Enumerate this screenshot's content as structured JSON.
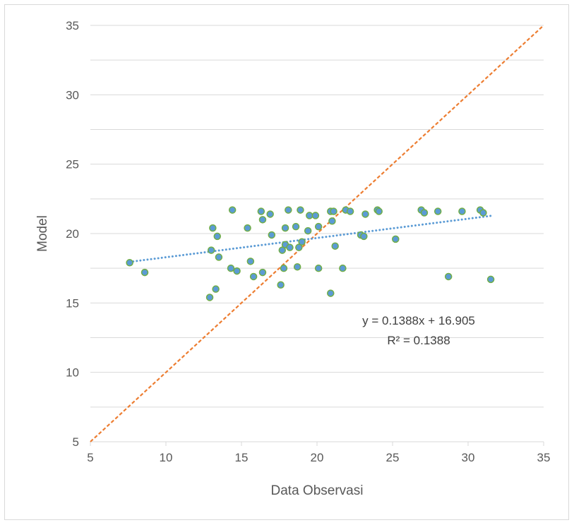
{
  "chart_data": {
    "type": "scatter",
    "title": "",
    "xlabel": "Data Observasi",
    "ylabel": "Model",
    "xlim": [
      5,
      35
    ],
    "ylim": [
      5,
      35
    ],
    "xticks": [
      "5",
      "10",
      "15",
      "20",
      "25",
      "30",
      "35"
    ],
    "yticks": [
      "5",
      "10",
      "15",
      "20",
      "25",
      "30",
      "35"
    ],
    "grid": "horizontal",
    "legend": "none",
    "colors": {
      "point_fill": "#5b9bd5",
      "point_edge": "#70ad47",
      "trendline": "#5b9bd5",
      "identity_line": "#ed7d31",
      "gridline": "#d9d9d9"
    },
    "points": [
      [
        7.6,
        17.9
      ],
      [
        8.6,
        17.2
      ],
      [
        12.9,
        15.4
      ],
      [
        13.1,
        20.4
      ],
      [
        13.0,
        18.8
      ],
      [
        13.3,
        16.0
      ],
      [
        13.4,
        19.8
      ],
      [
        13.5,
        18.3
      ],
      [
        14.4,
        21.7
      ],
      [
        14.3,
        17.5
      ],
      [
        14.7,
        17.3
      ],
      [
        15.4,
        20.4
      ],
      [
        15.6,
        18.0
      ],
      [
        15.8,
        16.9
      ],
      [
        16.3,
        21.6
      ],
      [
        16.4,
        21.0
      ],
      [
        16.4,
        17.2
      ],
      [
        16.9,
        21.4
      ],
      [
        17.0,
        19.9
      ],
      [
        17.6,
        16.3
      ],
      [
        17.7,
        18.8
      ],
      [
        17.8,
        17.5
      ],
      [
        17.9,
        20.4
      ],
      [
        17.9,
        19.2
      ],
      [
        18.1,
        21.7
      ],
      [
        18.2,
        19.0
      ],
      [
        18.6,
        20.5
      ],
      [
        18.7,
        17.6
      ],
      [
        18.8,
        19.0
      ],
      [
        18.9,
        21.7
      ],
      [
        19.0,
        19.4
      ],
      [
        19.4,
        20.2
      ],
      [
        19.5,
        21.3
      ],
      [
        19.9,
        21.3
      ],
      [
        20.1,
        20.5
      ],
      [
        20.1,
        17.5
      ],
      [
        20.9,
        21.6
      ],
      [
        20.9,
        15.7
      ],
      [
        21.0,
        20.9
      ],
      [
        21.1,
        21.6
      ],
      [
        21.2,
        19.1
      ],
      [
        21.7,
        17.5
      ],
      [
        21.9,
        21.7
      ],
      [
        22.2,
        21.6
      ],
      [
        22.9,
        19.9
      ],
      [
        23.1,
        19.8
      ],
      [
        23.2,
        21.4
      ],
      [
        24.0,
        21.7
      ],
      [
        24.1,
        21.6
      ],
      [
        25.2,
        19.6
      ],
      [
        26.9,
        21.7
      ],
      [
        27.1,
        21.5
      ],
      [
        28.0,
        21.6
      ],
      [
        28.7,
        16.9
      ],
      [
        29.6,
        21.6
      ],
      [
        30.8,
        21.7
      ],
      [
        31.0,
        21.5
      ],
      [
        31.5,
        16.7
      ]
    ],
    "trendline": {
      "type": "linear",
      "slope": 0.1388,
      "intercept": 16.905,
      "x_range": [
        7.6,
        31.5
      ],
      "style": "dotted"
    },
    "identity_line": {
      "from": [
        5,
        5
      ],
      "to": [
        35,
        35
      ],
      "style": "dashed"
    },
    "annotations": {
      "equation": "y = 0.1388x + 16.905",
      "r_squared": "R² = 0.1388"
    }
  }
}
